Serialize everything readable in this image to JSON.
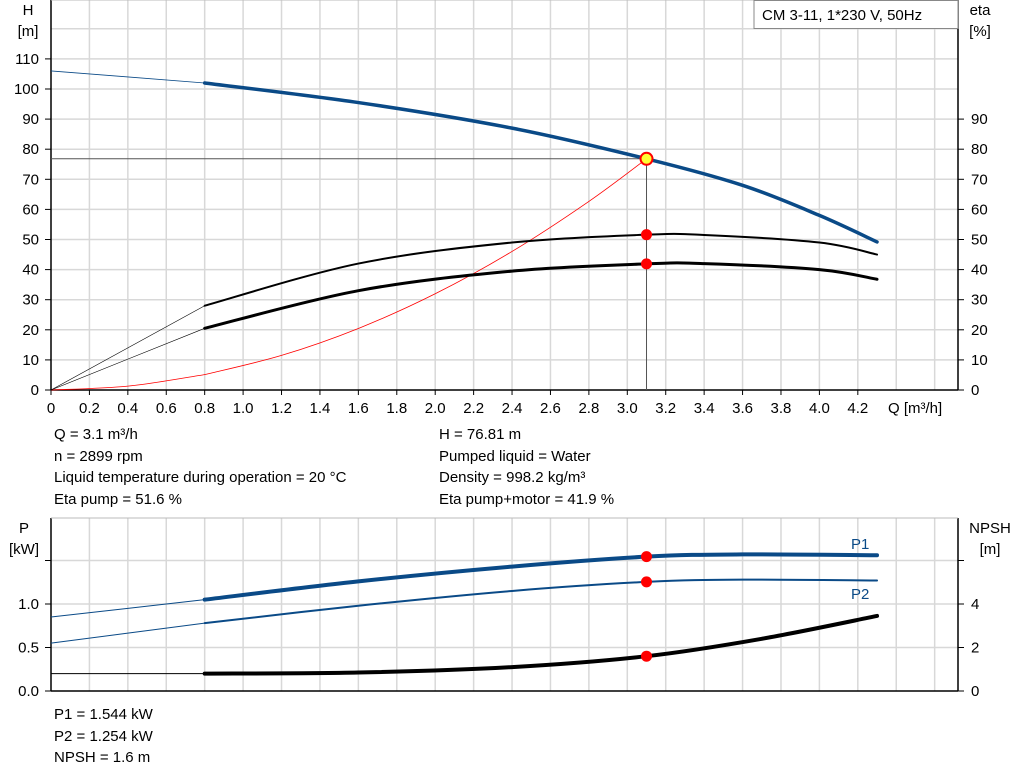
{
  "title_box": "CM 3-11, 1*230 V, 50Hz",
  "chart_data": [
    {
      "type": "line",
      "title": "CM 3-11, 1*230 V, 50Hz",
      "xlabel": "Q [m³/h]",
      "ylabel": "H [m]",
      "y2label": "eta [%]",
      "ylabel_parts": [
        "H",
        "[m]"
      ],
      "y2label_parts": [
        "eta",
        "[%]"
      ],
      "xlim": [
        0,
        4.72
      ],
      "ylim": [
        0,
        129.6
      ],
      "xticks": [
        "0",
        "0.2",
        "0.4",
        "0.6",
        "0.8",
        "1.0",
        "1.2",
        "1.4",
        "1.6",
        "1.8",
        "2.0",
        "2.2",
        "2.4",
        "2.6",
        "2.8",
        "3.0",
        "3.2",
        "3.4",
        "3.6",
        "3.8",
        "4.0",
        "4.2"
      ],
      "yticks": [
        0,
        10,
        20,
        30,
        40,
        50,
        60,
        70,
        80,
        90,
        100,
        110
      ],
      "y2ticks": [
        0,
        10,
        20,
        30,
        40,
        50,
        60,
        70,
        80,
        90
      ],
      "grid": true,
      "operating_point": {
        "Q": 3.1,
        "H": 76.81,
        "eta_pump": 51.6,
        "eta_total": 41.9
      },
      "series": [
        {
          "id": "head",
          "color": "#0a4a87",
          "x": [
            0,
            0.8,
            1.6,
            2.4,
            3.1,
            3.6,
            4.0,
            4.3
          ],
          "y": [
            106,
            102,
            95.5,
            87,
            76.81,
            68,
            58,
            49.2
          ]
        },
        {
          "id": "eta-pump",
          "color": "#000000",
          "x": [
            0,
            0.8,
            1.6,
            2.4,
            3.1,
            3.4,
            4.0,
            4.3
          ],
          "y": [
            0,
            28,
            42,
            49,
            51.6,
            51.5,
            49,
            45
          ]
        },
        {
          "id": "eta-pump-motor",
          "color": "#000000",
          "x": [
            0,
            0.8,
            1.6,
            2.4,
            3.1,
            3.4,
            4.0,
            4.3
          ],
          "y": [
            0,
            20.5,
            33,
            39.5,
            41.9,
            42,
            40,
            36.8
          ]
        },
        {
          "id": "system-curve",
          "color": "#ff0000",
          "x": [
            0,
            0.4,
            0.8,
            1.2,
            1.6,
            2.0,
            2.4,
            2.8,
            3.1
          ],
          "y": [
            0,
            1.28,
            5.11,
            11.5,
            20.45,
            31.97,
            46.03,
            62.66,
            76.81
          ]
        }
      ]
    },
    {
      "type": "line",
      "xlabel": "",
      "ylabel": "P [kW]",
      "y2label": "NPSH [m]",
      "ylabel_parts": [
        "P",
        "[kW]"
      ],
      "y2label_parts": [
        "NPSH",
        "[m]"
      ],
      "xlim": [
        0,
        4.72
      ],
      "ylim": [
        0,
        1.99
      ],
      "yticks": [
        "0.0",
        "0.5",
        "1.0"
      ],
      "y2ticks": [
        "0",
        "2",
        "4"
      ],
      "grid": true,
      "operating_point": {
        "Q": 3.1,
        "P1": 1.544,
        "P2": 1.254,
        "NPSH": 1.6
      },
      "series": [
        {
          "id": "P1",
          "name": "P1",
          "color": "#0a4a87",
          "x": [
            0,
            0.8,
            1.6,
            2.4,
            3.1,
            3.6,
            4.3
          ],
          "y": [
            0.85,
            1.05,
            1.26,
            1.43,
            1.544,
            1.57,
            1.56
          ]
        },
        {
          "id": "P2",
          "name": "P2",
          "color": "#0a4a87",
          "x": [
            0,
            0.8,
            1.6,
            2.4,
            3.1,
            3.6,
            4.3
          ],
          "y": [
            0.55,
            0.78,
            0.98,
            1.15,
            1.254,
            1.28,
            1.27
          ]
        },
        {
          "id": "NPSH",
          "color": "#000000",
          "x": [
            0,
            0.8,
            1.6,
            2.4,
            3.1,
            3.7,
            4.3
          ],
          "y_npsh_m": [
            0.8,
            0.8,
            0.85,
            1.1,
            1.6,
            2.4,
            3.45
          ]
        }
      ]
    }
  ],
  "readout_top": {
    "left": [
      "Q = 3.1 m³/h",
      "n = 2899 rpm",
      "Liquid temperature during operation = 20 °C",
      "Eta pump = 51.6 %"
    ],
    "right": [
      "H = 76.81 m",
      "Pumped liquid = Water",
      "Density = 998.2 kg/m³",
      "Eta pump+motor = 41.9 %"
    ]
  },
  "readout_bottom": [
    "P1 = 1.544 kW",
    "P2 = 1.254 kW",
    "NPSH = 1.6 m"
  ]
}
